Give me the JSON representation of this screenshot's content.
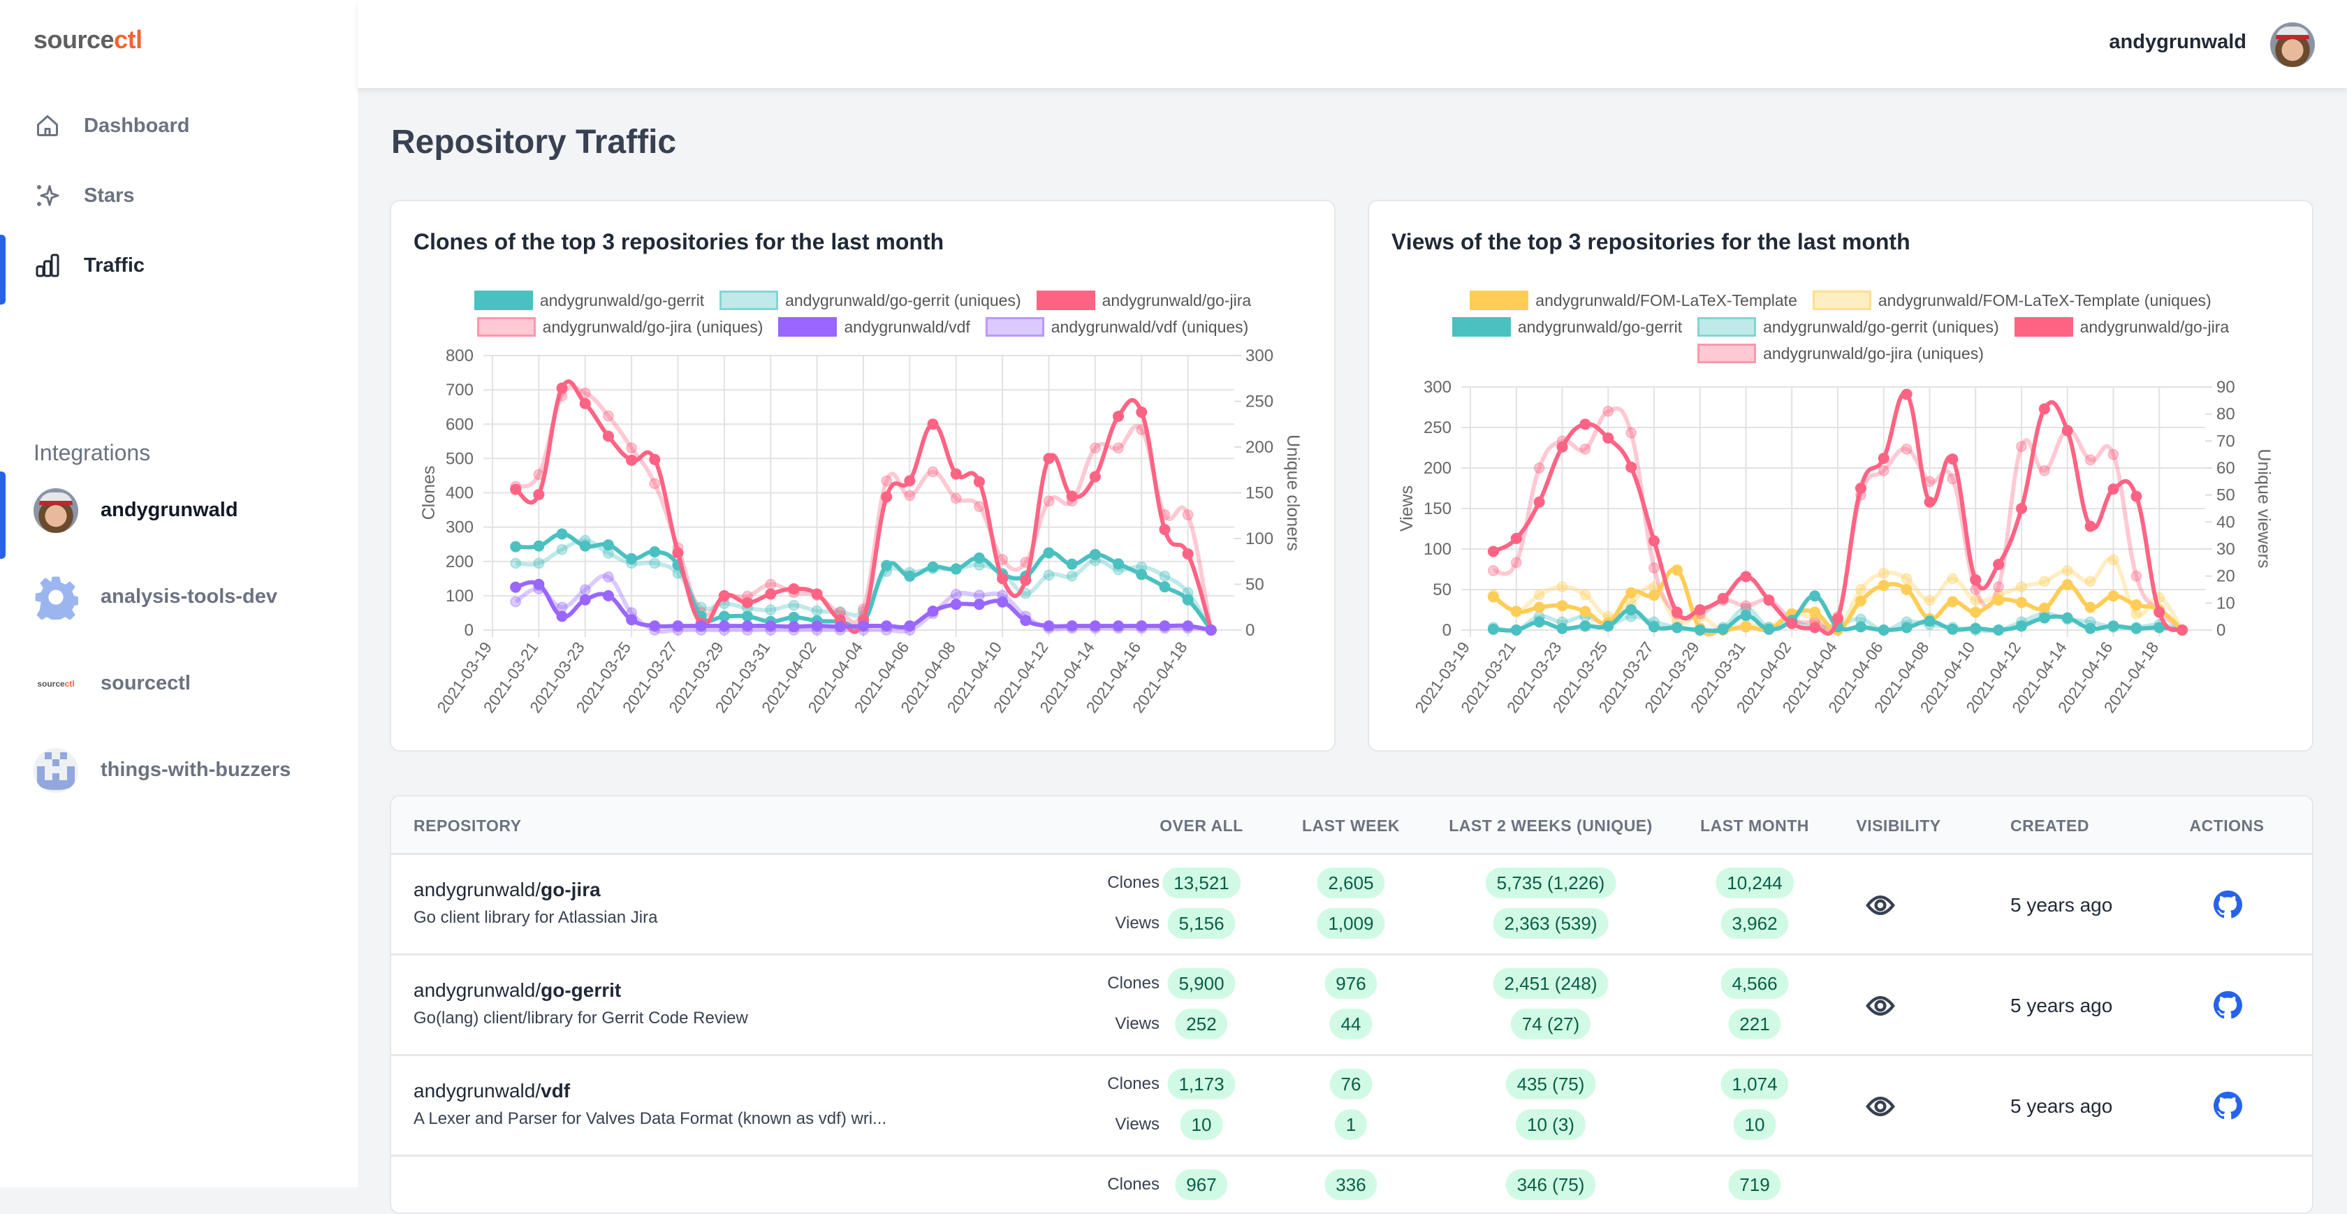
{
  "app": {
    "logo_main": "source",
    "logo_accent": "ctl",
    "logo_accent_color": "#f26430"
  },
  "sidebar": {
    "nav": [
      {
        "label": "Dashboard",
        "icon": "home-icon"
      },
      {
        "label": "Stars",
        "icon": "sparkles-icon"
      },
      {
        "label": "Traffic",
        "icon": "bar-chart-icon",
        "active": true
      }
    ],
    "integrations_title": "Integrations",
    "integrations": [
      {
        "label": "andygrunwald",
        "icon": "avatar",
        "active": true
      },
      {
        "label": "analysis-tools-dev",
        "icon": "gear-icon"
      },
      {
        "label": "sourcectl",
        "icon": "sourcectl-logo"
      },
      {
        "label": "things-with-buzzers",
        "icon": "pixel-logo"
      }
    ]
  },
  "header": {
    "username": "andygrunwald"
  },
  "page": {
    "title": "Repository Traffic"
  },
  "colors": {
    "accent": "#2563eb",
    "teal": "#4bc0c0",
    "red": "#ff6384",
    "purple": "#9966ff",
    "yellow": "#ffcd56",
    "pill_bg": "#d1fae5",
    "pill_text": "#065f46"
  },
  "chart_data": [
    {
      "type": "line",
      "title": "Clones of the top 3 repositories for the last month",
      "ylabel": "Clones",
      "y2label": "Unique cloners",
      "ylim": [
        0,
        800
      ],
      "y2lim": [
        0,
        300
      ],
      "yticks": [
        0,
        100,
        200,
        300,
        400,
        500,
        600,
        700,
        800
      ],
      "y2ticks": [
        0,
        50,
        100,
        150,
        200,
        250,
        300
      ],
      "xticks": [
        "2021-03-19",
        "2021-03-21",
        "2021-03-23",
        "2021-03-25",
        "2021-03-27",
        "2021-03-29",
        "2021-03-31",
        "2021-04-02",
        "2021-04-04",
        "2021-04-06",
        "2021-04-08",
        "2021-04-10",
        "2021-04-12",
        "2021-04-14",
        "2021-04-16",
        "2021-04-18"
      ],
      "x_start": "2021-03-20",
      "x_end": "2021-04-19",
      "grid": true,
      "legend": "top",
      "series": [
        {
          "name": "andygrunwald/go-gerrit",
          "color": "#4bc0c0",
          "axis": "left",
          "values": [
            243,
            245,
            280,
            245,
            248,
            208,
            228,
            190,
            40,
            40,
            40,
            25,
            37,
            27,
            25,
            22,
            188,
            157,
            184,
            178,
            210,
            162,
            157,
            225,
            192,
            220,
            193,
            162,
            126,
            88,
            0
          ]
        },
        {
          "name": "andygrunwald/go-gerrit (uniques)",
          "color": "#4bc0c0",
          "uniques": true,
          "axis": "right",
          "values": [
            73,
            73,
            88,
            98,
            84,
            73,
            73,
            62,
            25,
            29,
            24,
            22,
            27,
            21,
            20,
            20,
            64,
            63,
            67,
            67,
            71,
            62,
            40,
            60,
            59,
            76,
            66,
            69,
            59,
            41,
            0
          ]
        },
        {
          "name": "andygrunwald/go-jira",
          "color": "#ff6384",
          "axis": "left",
          "values": [
            410,
            395,
            705,
            660,
            565,
            495,
            497,
            225,
            20,
            100,
            80,
            105,
            120,
            105,
            30,
            30,
            388,
            435,
            600,
            455,
            432,
            150,
            145,
            500,
            390,
            447,
            623,
            635,
            293,
            222,
            0
          ]
        },
        {
          "name": "andygrunwald/go-jira (uniques)",
          "color": "#ff6384",
          "uniques": true,
          "axis": "right",
          "values": [
            157,
            170,
            256,
            259,
            234,
            199,
            160,
            90,
            19,
            36,
            37,
            50,
            41,
            38,
            19,
            23,
            163,
            147,
            173,
            144,
            135,
            77,
            74,
            141,
            141,
            199,
            199,
            219,
            126,
            126,
            0
          ]
        },
        {
          "name": "andygrunwald/vdf",
          "color": "#9966ff",
          "axis": "left",
          "values": [
            125,
            133,
            40,
            88,
            100,
            30,
            12,
            12,
            12,
            12,
            12,
            12,
            10,
            12,
            10,
            12,
            12,
            12,
            55,
            75,
            75,
            82,
            28,
            12,
            12,
            12,
            12,
            12,
            12,
            12,
            0
          ]
        },
        {
          "name": "andygrunwald/vdf (uniques)",
          "color": "#9966ff",
          "uniques": true,
          "axis": "right",
          "values": [
            31,
            45,
            25,
            44,
            58,
            19,
            0,
            0,
            0,
            0,
            0,
            0,
            0,
            0,
            0,
            0,
            0,
            0,
            18,
            39,
            38,
            38,
            15,
            2,
            2,
            2,
            2,
            2,
            2,
            2,
            0
          ]
        }
      ]
    },
    {
      "type": "line",
      "title": "Views of the top 3 repositories for the last month",
      "ylabel": "Views",
      "y2label": "Unique viewers",
      "ylim": [
        0,
        300
      ],
      "y2lim": [
        0,
        90
      ],
      "yticks": [
        0,
        50,
        100,
        150,
        200,
        250,
        300
      ],
      "y2ticks": [
        0,
        10,
        20,
        30,
        40,
        50,
        60,
        70,
        80,
        90
      ],
      "xticks": [
        "2021-03-19",
        "2021-03-21",
        "2021-03-23",
        "2021-03-25",
        "2021-03-27",
        "2021-03-29",
        "2021-03-31",
        "2021-04-02",
        "2021-04-04",
        "2021-04-06",
        "2021-04-08",
        "2021-04-10",
        "2021-04-12",
        "2021-04-14",
        "2021-04-16",
        "2021-04-18"
      ],
      "x_start": "2021-03-20",
      "x_end": "2021-04-19",
      "grid": true,
      "legend": "top",
      "series": [
        {
          "name": "andygrunwald/FOM-LaTeX-Template",
          "color": "#ffcd56",
          "axis": "left",
          "values": [
            41,
            23,
            28,
            30,
            23,
            9,
            46,
            43,
            74,
            2,
            0,
            4,
            1,
            20,
            22,
            0,
            36,
            55,
            50,
            14,
            35,
            22,
            37,
            34,
            27,
            56,
            28,
            42,
            31,
            25,
            0
          ]
        },
        {
          "name": "andygrunwald/FOM-LaTeX-Template (uniques)",
          "color": "#ffcd56",
          "uniques": true,
          "axis": "right",
          "values": [
            13,
            7,
            13,
            16,
            13,
            5,
            10,
            16,
            3,
            5,
            0,
            2,
            1,
            6,
            4,
            0,
            15,
            21,
            19,
            11,
            19,
            11,
            13,
            16,
            18,
            22,
            18,
            26,
            6,
            12,
            0
          ]
        },
        {
          "name": "andygrunwald/go-gerrit",
          "color": "#4bc0c0",
          "axis": "left",
          "values": [
            1,
            0,
            10,
            2,
            5,
            5,
            25,
            4,
            3,
            0,
            1,
            18,
            1,
            12,
            42,
            4,
            4,
            0,
            3,
            11,
            1,
            2,
            0,
            5,
            15,
            15,
            2,
            5,
            2,
            3,
            0
          ]
        },
        {
          "name": "andygrunwald/go-gerrit (uniques)",
          "color": "#4bc0c0",
          "uniques": true,
          "axis": "right",
          "values": [
            1,
            0,
            5,
            3,
            5,
            2,
            5,
            3,
            1,
            0,
            1,
            8,
            1,
            3,
            1,
            2,
            4,
            0,
            3,
            2,
            1,
            0,
            0,
            3,
            6,
            4,
            3,
            1,
            1,
            2,
            0
          ]
        },
        {
          "name": "andygrunwald/go-jira",
          "color": "#ff6384",
          "axis": "left",
          "values": [
            97,
            113,
            158,
            226,
            254,
            237,
            201,
            110,
            22,
            25,
            39,
            66,
            37,
            8,
            3,
            14,
            175,
            212,
            291,
            158,
            211,
            62,
            81,
            150,
            273,
            246,
            128,
            174,
            165,
            22,
            0
          ]
        },
        {
          "name": "andygrunwald/go-jira (uniques)",
          "color": "#ff6384",
          "uniques": true,
          "axis": "right",
          "values": [
            22,
            25,
            60,
            70,
            67,
            81,
            73,
            23,
            6,
            6,
            11,
            9,
            11,
            4,
            3,
            5,
            50,
            59,
            67,
            55,
            56,
            15,
            16,
            68,
            59,
            74,
            63,
            65,
            20,
            7,
            0
          ]
        }
      ]
    }
  ],
  "table": {
    "headers": [
      "REPOSITORY",
      "OVER ALL",
      "LAST WEEK",
      "LAST 2 WEEKS (UNIQUE)",
      "LAST MONTH",
      "VISIBILITY",
      "CREATED",
      "ACTIONS"
    ],
    "metric_labels": [
      "Clones",
      "Views"
    ],
    "rows": [
      {
        "owner": "andygrunwald/",
        "repo": "go-jira",
        "description": "Go client library for Atlassian Jira",
        "clones": [
          "13,521",
          "2,605",
          "5,735 (1,226)",
          "10,244"
        ],
        "views": [
          "5,156",
          "1,009",
          "2,363 (539)",
          "3,962"
        ],
        "visibility": "eye-icon",
        "created": "5 years ago"
      },
      {
        "owner": "andygrunwald/",
        "repo": "go-gerrit",
        "description": "Go(lang) client/library for Gerrit Code Review",
        "clones": [
          "5,900",
          "976",
          "2,451 (248)",
          "4,566"
        ],
        "views": [
          "252",
          "44",
          "74 (27)",
          "221"
        ],
        "visibility": "eye-icon",
        "created": "5 years ago"
      },
      {
        "owner": "andygrunwald/",
        "repo": "vdf",
        "description": "A Lexer and Parser for Valves Data Format (known as vdf) wri...",
        "clones": [
          "1,173",
          "76",
          "435 (75)",
          "1,074"
        ],
        "views": [
          "10",
          "1",
          "10 (3)",
          "10"
        ],
        "visibility": "eye-icon",
        "created": "5 years ago"
      },
      {
        "clones": [
          "967",
          "336",
          "346 (75)",
          "719"
        ]
      }
    ]
  }
}
